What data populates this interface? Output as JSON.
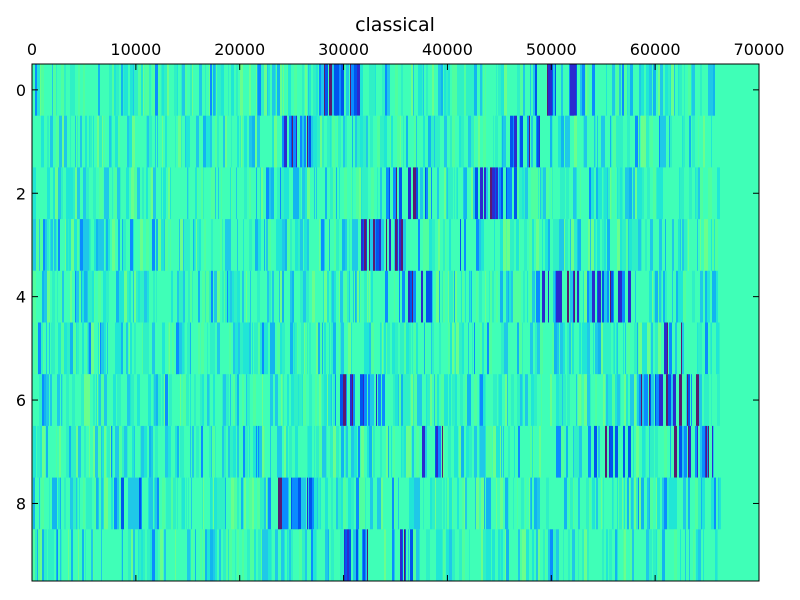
{
  "chart_data": {
    "type": "heatmap",
    "title": "classical",
    "x_axis": {
      "position": "top",
      "ticks": [
        0,
        10000,
        20000,
        30000,
        40000,
        50000,
        60000,
        70000
      ],
      "tick_labels": [
        "0",
        "10000",
        "20000",
        "30000",
        "40000",
        "50000",
        "60000",
        "70000"
      ],
      "range": [
        0,
        70000
      ]
    },
    "y_axis": {
      "position": "left",
      "inverted": true,
      "ticks": [
        0,
        2,
        4,
        6,
        8
      ],
      "tick_labels": [
        "0",
        "2",
        "4",
        "6",
        "8"
      ],
      "range": [
        -0.5,
        9.5
      ]
    },
    "rows": [
      {
        "index": 0,
        "length": 66200,
        "dark_regions": [
          [
            27500,
            31500
          ],
          [
            47500,
            53000
          ]
        ]
      },
      {
        "index": 1,
        "length": 66200,
        "dark_regions": [
          [
            24000,
            27000
          ],
          [
            46000,
            49000
          ]
        ]
      },
      {
        "index": 2,
        "length": 66300,
        "dark_regions": [
          [
            42500,
            46500
          ],
          [
            34000,
            38000
          ]
        ]
      },
      {
        "index": 3,
        "length": 66000,
        "dark_regions": [
          [
            31500,
            37500
          ],
          [
            41000,
            43000
          ]
        ]
      },
      {
        "index": 4,
        "length": 66200,
        "dark_regions": [
          [
            35500,
            38500
          ],
          [
            48000,
            52500
          ],
          [
            53500,
            57500
          ]
        ]
      },
      {
        "index": 5,
        "length": 66300,
        "dark_regions": [
          [
            60500,
            63500
          ]
        ]
      },
      {
        "index": 6,
        "length": 66400,
        "dark_regions": [
          [
            29500,
            34500
          ],
          [
            58500,
            64500
          ]
        ]
      },
      {
        "index": 7,
        "length": 66000,
        "dark_regions": [
          [
            37500,
            39500
          ],
          [
            52500,
            57500
          ],
          [
            61500,
            65500
          ]
        ]
      },
      {
        "index": 8,
        "length": 66300,
        "dark_regions": [
          [
            8500,
            10500
          ],
          [
            23500,
            27000
          ]
        ]
      },
      {
        "index": 9,
        "length": 66100,
        "dark_regions": [
          [
            30000,
            32500
          ],
          [
            34500,
            36500
          ]
        ]
      }
    ],
    "colormap": "jet",
    "background_color": "#3fffb7",
    "grid": false,
    "legend": "none"
  }
}
